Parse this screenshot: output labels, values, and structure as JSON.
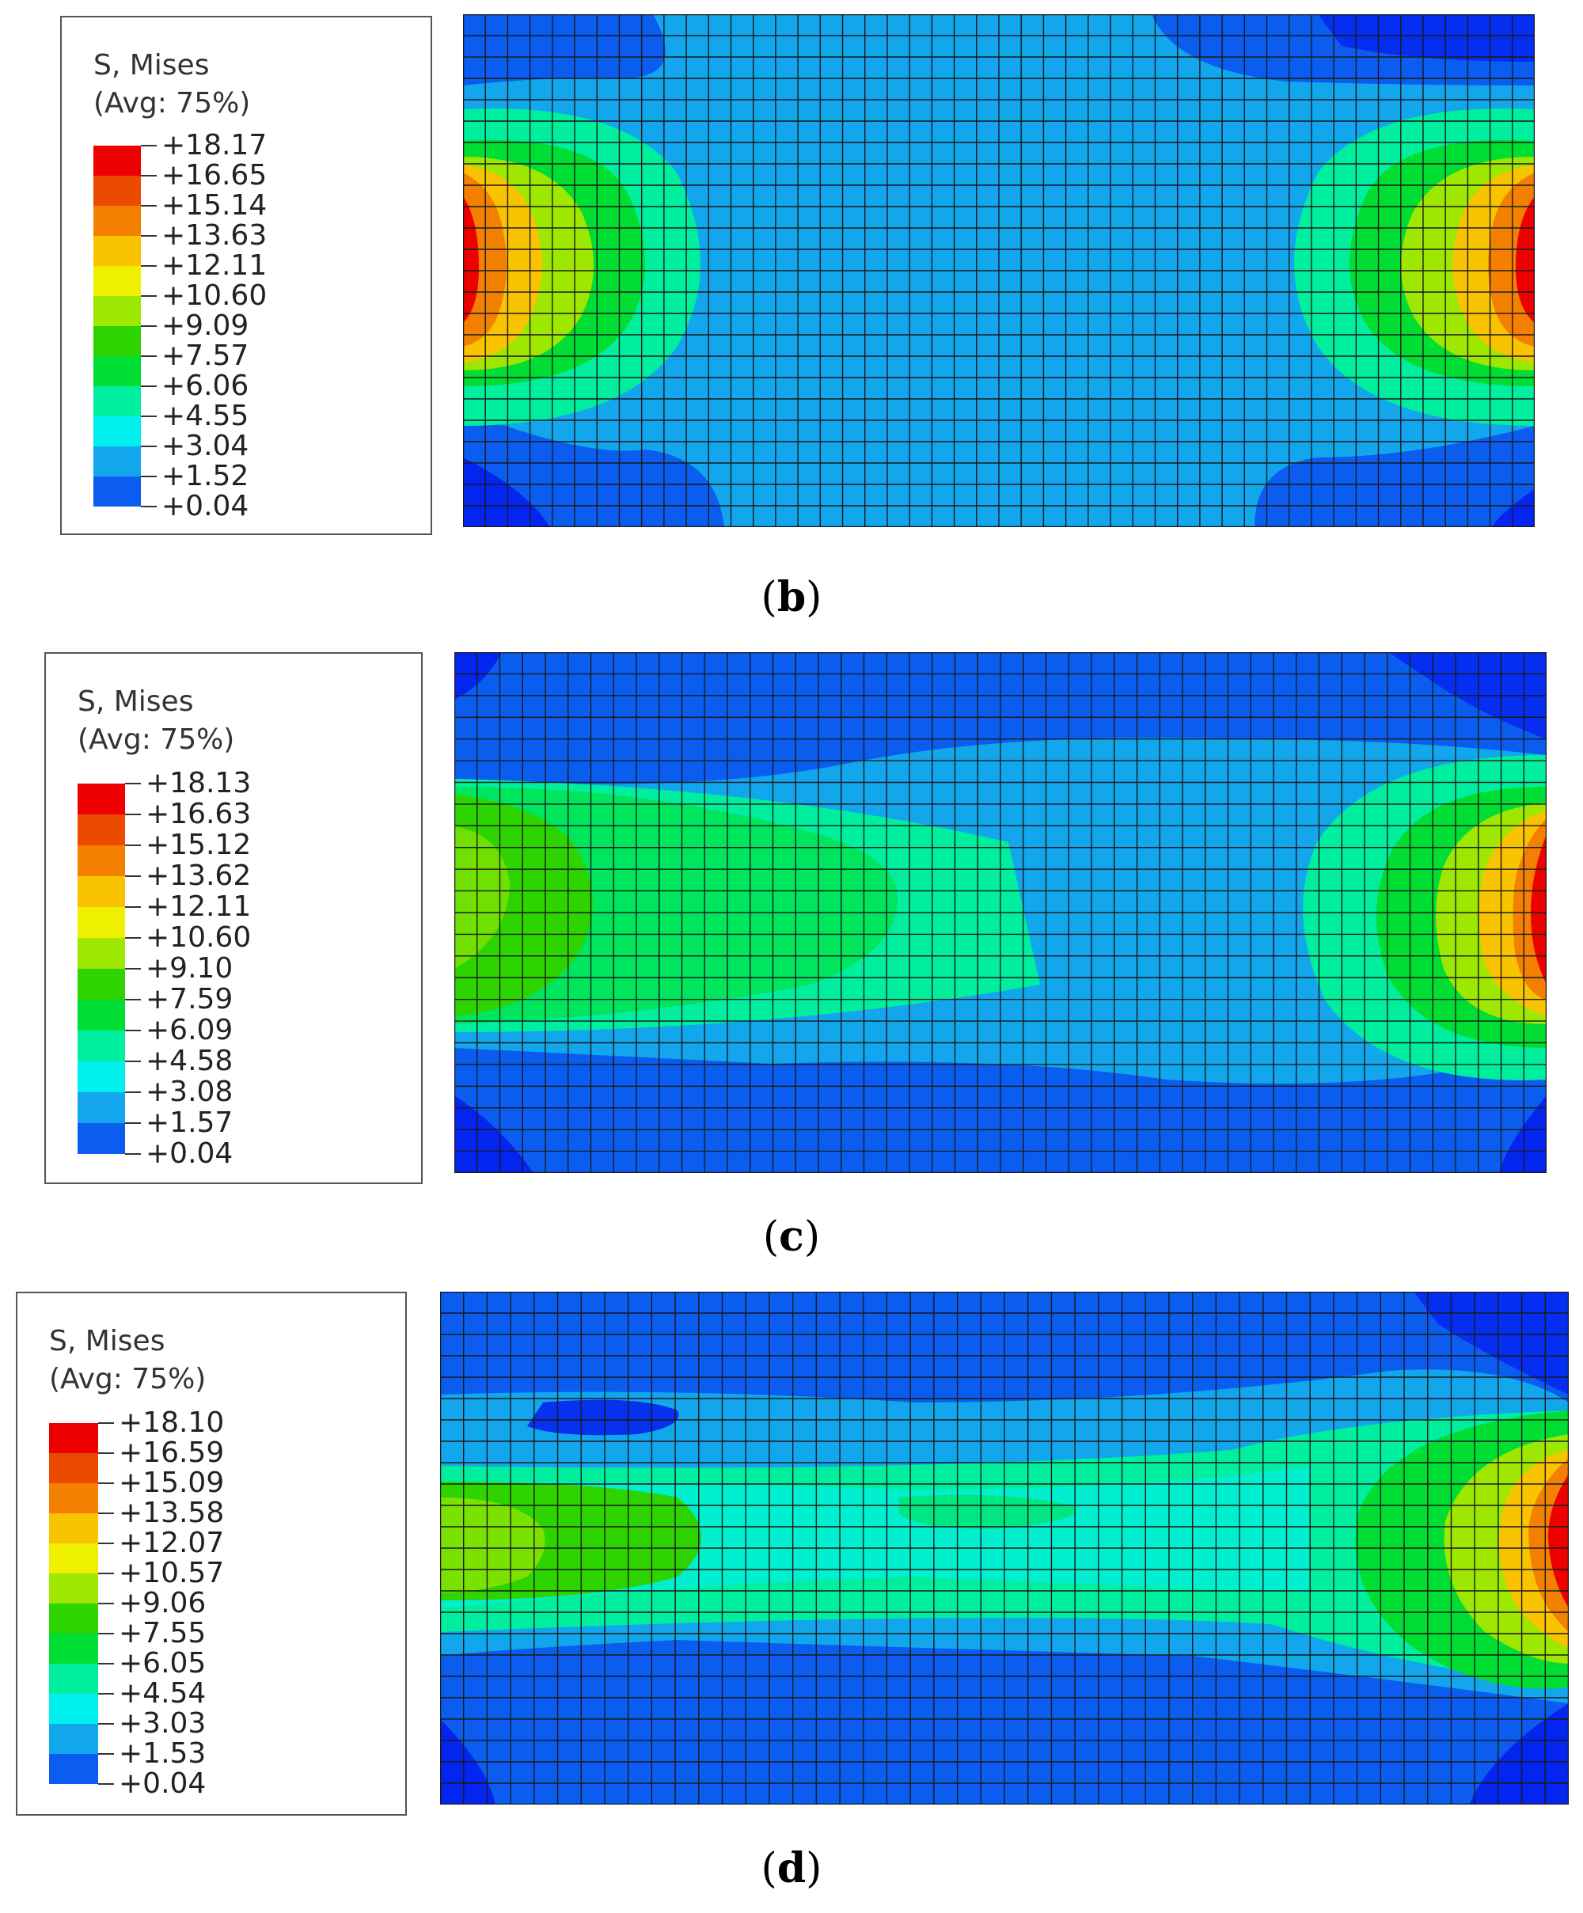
{
  "colors": [
    "#0000f0",
    "#0b5df0",
    "#12a6ed",
    "#00efef",
    "#00ef9f",
    "#00dd33",
    "#2ed400",
    "#9de700",
    "#eef000",
    "#f9c300",
    "#f38000",
    "#eb4b00",
    "#ec0000"
  ],
  "panels": [
    {
      "id": "b",
      "caption": "b",
      "legend": {
        "title_line1": "S, Mises",
        "title_line2": "(Avg: 75%)",
        "values": [
          "+18.17",
          "+16.65",
          "+15.14",
          "+13.63",
          "+12.11",
          "+10.60",
          "+9.09",
          "+7.57",
          "+6.06",
          "+4.55",
          "+3.04",
          "+1.52",
          "+0.04"
        ]
      }
    },
    {
      "id": "c",
      "caption": "c",
      "legend": {
        "title_line1": "S, Mises",
        "title_line2": "(Avg: 75%)",
        "values": [
          "+18.13",
          "+16.63",
          "+15.12",
          "+13.62",
          "+12.11",
          "+10.60",
          "+9.10",
          "+7.59",
          "+6.09",
          "+4.58",
          "+3.08",
          "+1.57",
          "+0.04"
        ]
      }
    },
    {
      "id": "d",
      "caption": "d",
      "legend": {
        "title_line1": "S, Mises",
        "title_line2": "(Avg: 75%)",
        "values": [
          "+18.10",
          "+16.59",
          "+15.09",
          "+13.58",
          "+12.07",
          "+10.57",
          "+9.06",
          "+7.55",
          "+6.05",
          "+4.54",
          "+3.03",
          "+1.53",
          "+0.04"
        ]
      }
    }
  ]
}
